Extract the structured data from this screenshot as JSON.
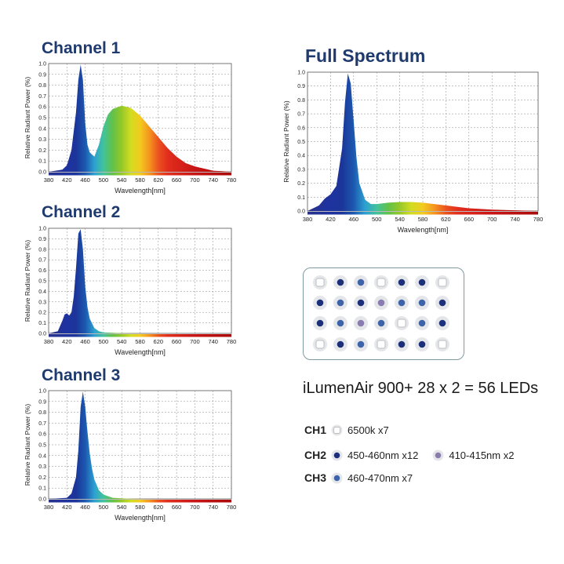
{
  "chart_data": [
    {
      "type": "area",
      "title": "Channel 1",
      "xlabel": "Wavelength[nm]",
      "ylabel": "Relative  Radiant  Power (%)",
      "xlim": [
        380,
        780
      ],
      "ylim": [
        0,
        1.0
      ],
      "x_ticks": [
        "380",
        "420",
        "460",
        "500",
        "540",
        "580",
        "620",
        "660",
        "700",
        "740",
        "780"
      ],
      "y_ticks": [
        "0.0",
        "0.1",
        "0.2",
        "0.3",
        "0.4",
        "0.5",
        "0.6",
        "0.7",
        "0.8",
        "0.9",
        "1.0"
      ],
      "series": [
        {
          "x": [
            380,
            410,
            420,
            430,
            440,
            445,
            450,
            455,
            460,
            465,
            470,
            480,
            490,
            500,
            510,
            520,
            540,
            560,
            580,
            600,
            620,
            640,
            660,
            680,
            700,
            720,
            740,
            760,
            780
          ],
          "y": [
            0.0,
            0.02,
            0.06,
            0.2,
            0.55,
            0.85,
            0.99,
            0.85,
            0.45,
            0.25,
            0.18,
            0.14,
            0.25,
            0.42,
            0.53,
            0.58,
            0.61,
            0.59,
            0.52,
            0.42,
            0.32,
            0.22,
            0.14,
            0.08,
            0.05,
            0.03,
            0.01,
            0.005,
            0.0
          ]
        }
      ],
      "grid": true
    },
    {
      "type": "area",
      "title": "Channel 2",
      "xlabel": "Wavelength[nm]",
      "ylabel": "Relative  Radiant  Power (%)",
      "xlim": [
        380,
        780
      ],
      "ylim": [
        0,
        1.0
      ],
      "x_ticks": [
        "380",
        "420",
        "460",
        "500",
        "540",
        "580",
        "620",
        "660",
        "700",
        "740",
        "780"
      ],
      "y_ticks": [
        "0.0",
        "0.1",
        "0.2",
        "0.3",
        "0.4",
        "0.5",
        "0.6",
        "0.7",
        "0.8",
        "0.9",
        "1.0"
      ],
      "series": [
        {
          "x": [
            380,
            400,
            410,
            415,
            420,
            425,
            430,
            435,
            440,
            445,
            450,
            455,
            460,
            465,
            470,
            480,
            490,
            500,
            520,
            540,
            560,
            600,
            700,
            780
          ],
          "y": [
            0.0,
            0.02,
            0.12,
            0.18,
            0.19,
            0.17,
            0.2,
            0.35,
            0.62,
            0.95,
            0.99,
            0.8,
            0.45,
            0.25,
            0.14,
            0.05,
            0.02,
            0.01,
            0.005,
            0.002,
            0.001,
            0.0,
            0.0,
            0.0
          ]
        }
      ],
      "grid": true
    },
    {
      "type": "area",
      "title": "Channel 3",
      "xlabel": "Wavelength[nm]",
      "ylabel": "Relative  Radiant  Power (%)",
      "xlim": [
        380,
        780
      ],
      "ylim": [
        0,
        1.0
      ],
      "x_ticks": [
        "380",
        "420",
        "460",
        "500",
        "540",
        "580",
        "620",
        "660",
        "700",
        "740",
        "780"
      ],
      "y_ticks": [
        "0.0",
        "0.1",
        "0.2",
        "0.3",
        "0.4",
        "0.5",
        "0.6",
        "0.7",
        "0.8",
        "0.9",
        "1.0"
      ],
      "series": [
        {
          "x": [
            380,
            420,
            430,
            440,
            445,
            450,
            455,
            460,
            465,
            470,
            475,
            480,
            490,
            500,
            520,
            540,
            560,
            600,
            700,
            780
          ],
          "y": [
            0.0,
            0.01,
            0.05,
            0.2,
            0.45,
            0.85,
            0.99,
            0.85,
            0.62,
            0.42,
            0.28,
            0.18,
            0.08,
            0.04,
            0.01,
            0.005,
            0.002,
            0.0,
            0.0,
            0.0
          ]
        }
      ],
      "grid": true
    },
    {
      "type": "area",
      "title": "Full Spectrum",
      "xlabel": "Wavelength[nm]",
      "ylabel": "Relative  Radiant  Power (%)",
      "xlim": [
        380,
        780
      ],
      "ylim": [
        0,
        1.0
      ],
      "x_ticks": [
        "380",
        "420",
        "460",
        "500",
        "540",
        "580",
        "620",
        "660",
        "700",
        "740",
        "780"
      ],
      "y_ticks": [
        "0.0",
        "0.1",
        "0.2",
        "0.3",
        "0.4",
        "0.5",
        "0.6",
        "0.7",
        "0.8",
        "0.9",
        "1.0"
      ],
      "series": [
        {
          "x": [
            380,
            400,
            410,
            420,
            430,
            440,
            445,
            450,
            455,
            460,
            465,
            470,
            480,
            490,
            500,
            520,
            540,
            560,
            580,
            600,
            620,
            640,
            660,
            700,
            740,
            780
          ],
          "y": [
            0.0,
            0.04,
            0.09,
            0.12,
            0.18,
            0.45,
            0.78,
            0.99,
            0.92,
            0.65,
            0.38,
            0.2,
            0.08,
            0.05,
            0.05,
            0.06,
            0.065,
            0.065,
            0.06,
            0.05,
            0.04,
            0.03,
            0.02,
            0.01,
            0.005,
            0.0
          ]
        }
      ],
      "grid": true
    }
  ],
  "led_panel": {
    "grid": [
      [
        "w",
        "b",
        "m",
        "w",
        "b",
        "b",
        "w"
      ],
      [
        "b",
        "m",
        "b",
        "v",
        "m",
        "m",
        "b"
      ],
      [
        "b",
        "m",
        "v",
        "m",
        "w",
        "m",
        "b"
      ],
      [
        "w",
        "b",
        "m",
        "w",
        "b",
        "b",
        "w"
      ]
    ],
    "types": {
      "w": {
        "fill": "#ffffff",
        "ring": "#cfcfcf"
      },
      "b": {
        "fill": "#1c2f7a",
        "ring": "#dde2ea"
      },
      "m": {
        "fill": "#3d63a8",
        "ring": "#dde2ea"
      },
      "v": {
        "fill": "#8a7cb0",
        "ring": "#dde2ea"
      }
    }
  },
  "headline": "iLumenAir 900+ 28 x 2 = 56 LEDs",
  "legend": {
    "ch1": {
      "label": "CH1",
      "item1": "6500k x7"
    },
    "ch2": {
      "label": "CH2",
      "item1": "450-460nm x12",
      "item2": "410-415nm x2"
    },
    "ch3": {
      "label": "CH3",
      "item1": "460-470nm x7"
    }
  }
}
